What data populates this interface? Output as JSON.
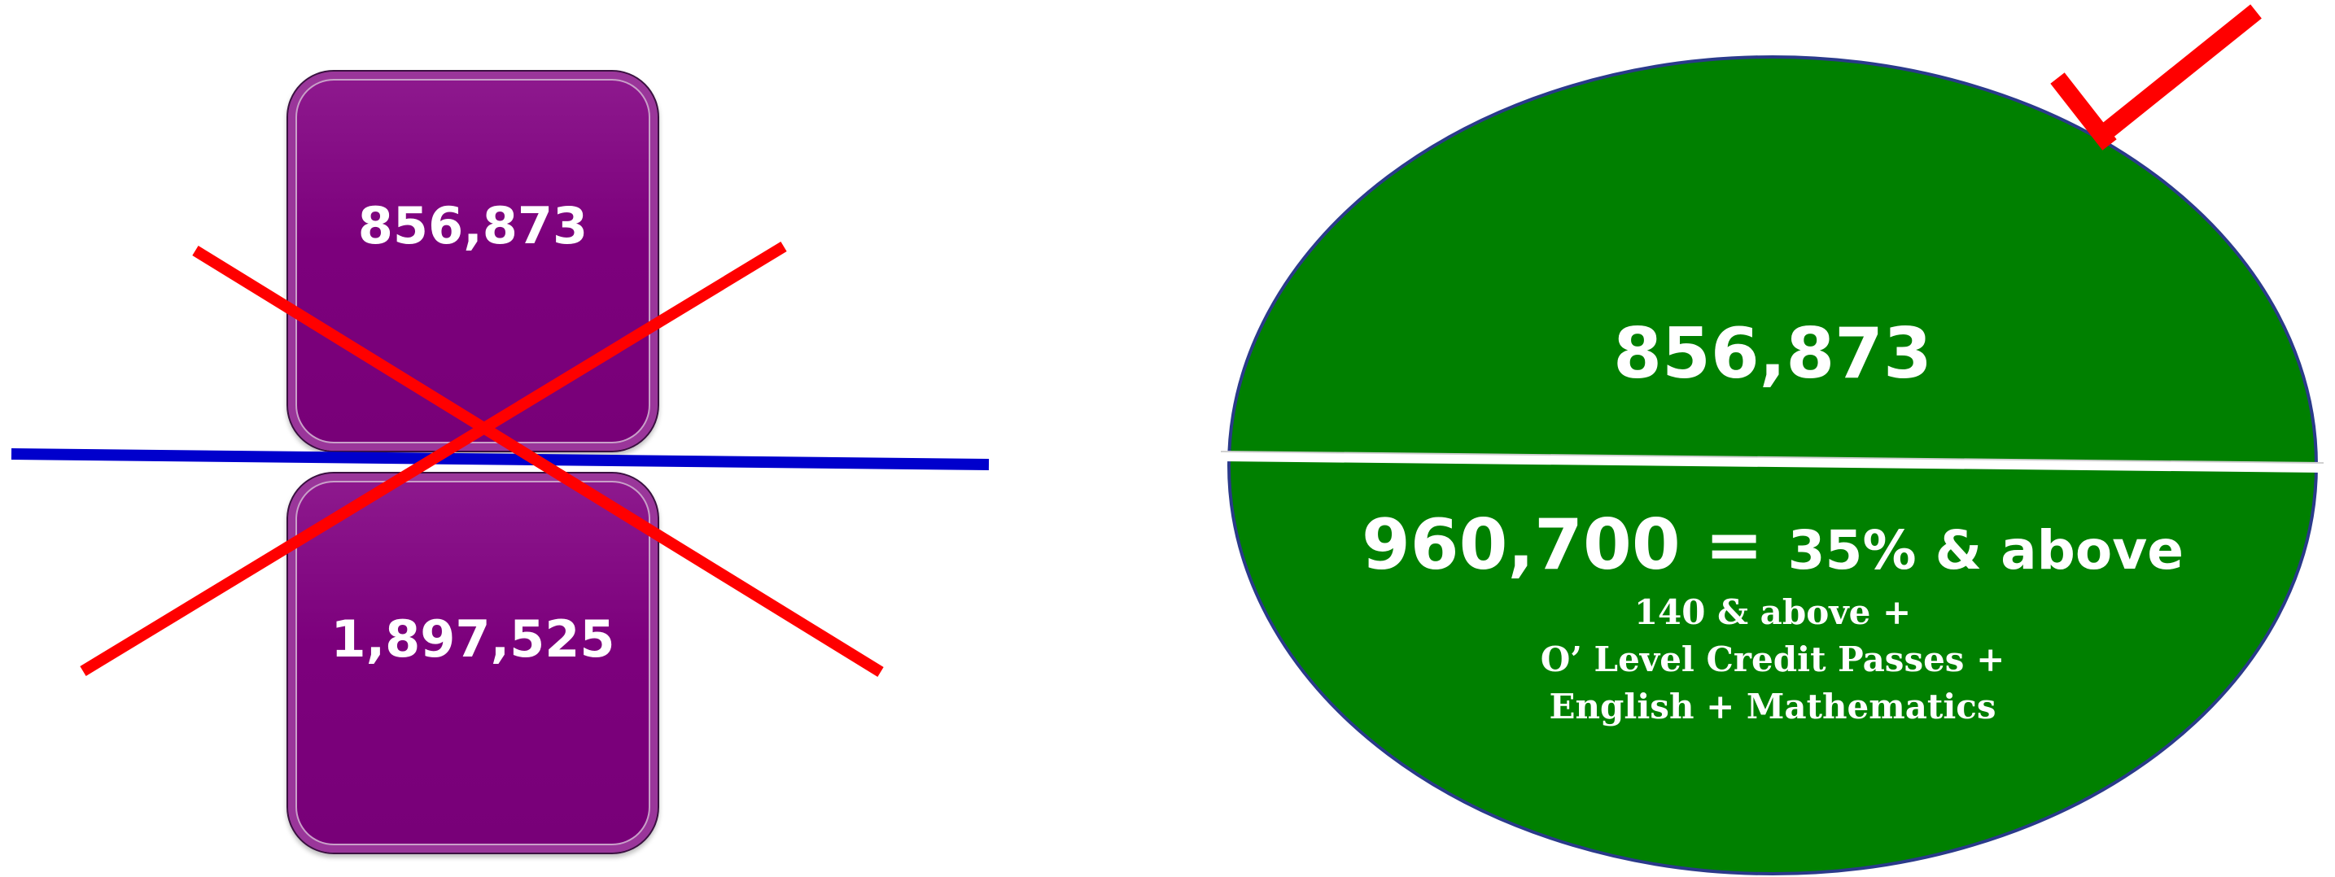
{
  "left_group": {
    "top_box_value": "856,873",
    "bottom_box_value": "1,897,525",
    "box_color": "#7c007c",
    "divider_color": "#0000cc",
    "cross_color": "#ff0000"
  },
  "right_group": {
    "top_value": "856,873",
    "main_value": "960,700",
    "equals": "=",
    "threshold": "35% & above",
    "conditions": [
      "140 & above +",
      "O’ Level Credit Passes +",
      "English + Mathematics"
    ],
    "ellipse_color": "#008000",
    "divider_color": "#ffffff",
    "check_color": "#ff0000"
  },
  "icons": {
    "left_mark": "cross-icon",
    "right_mark": "checkmark-icon"
  }
}
